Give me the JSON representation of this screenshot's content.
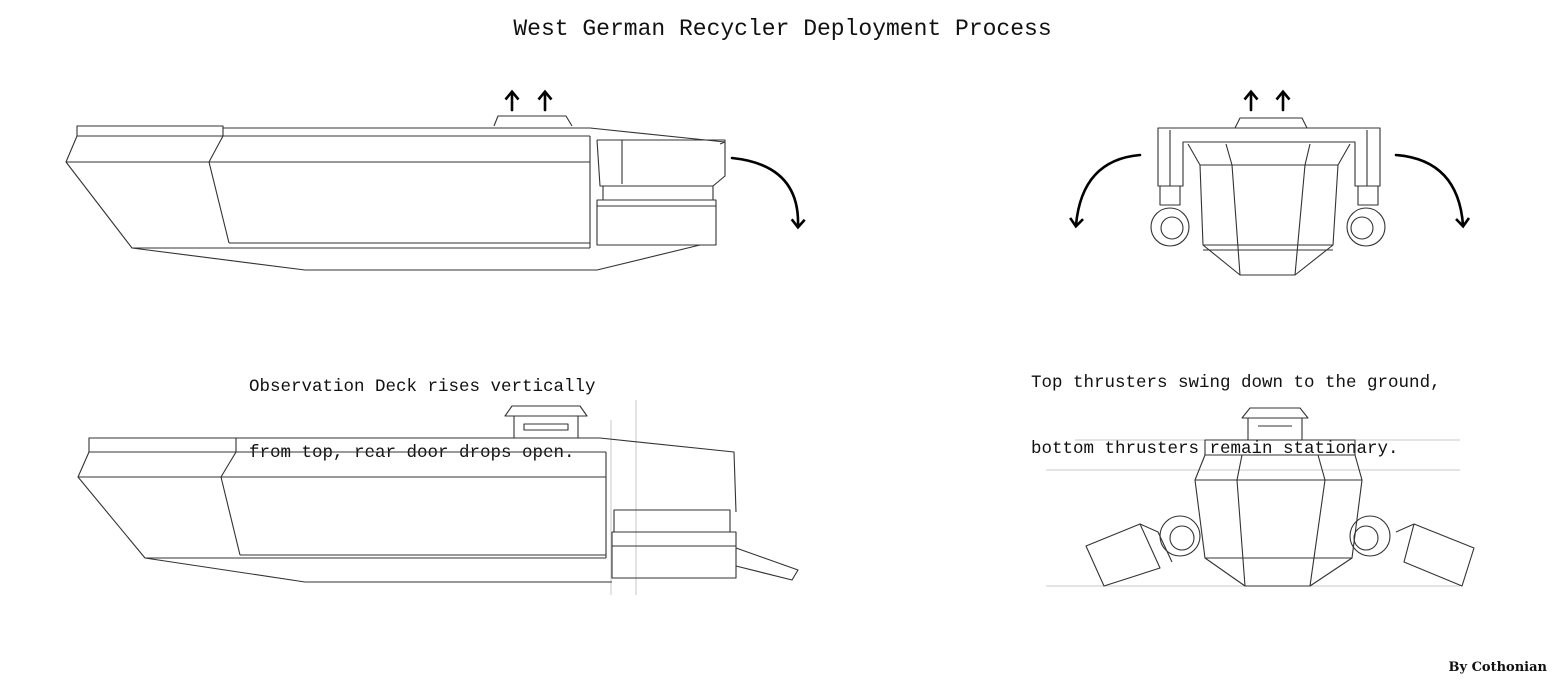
{
  "diagram": {
    "title": "West German Recycler Deployment Process",
    "captions": {
      "side_view": [
        "Observation Deck rises vertically",
        "from top, rear door drops open."
      ],
      "front_view": [
        "Top thrusters swing down to the ground,",
        "bottom thrusters remain stationary."
      ]
    },
    "credit": "By Cothonian"
  }
}
